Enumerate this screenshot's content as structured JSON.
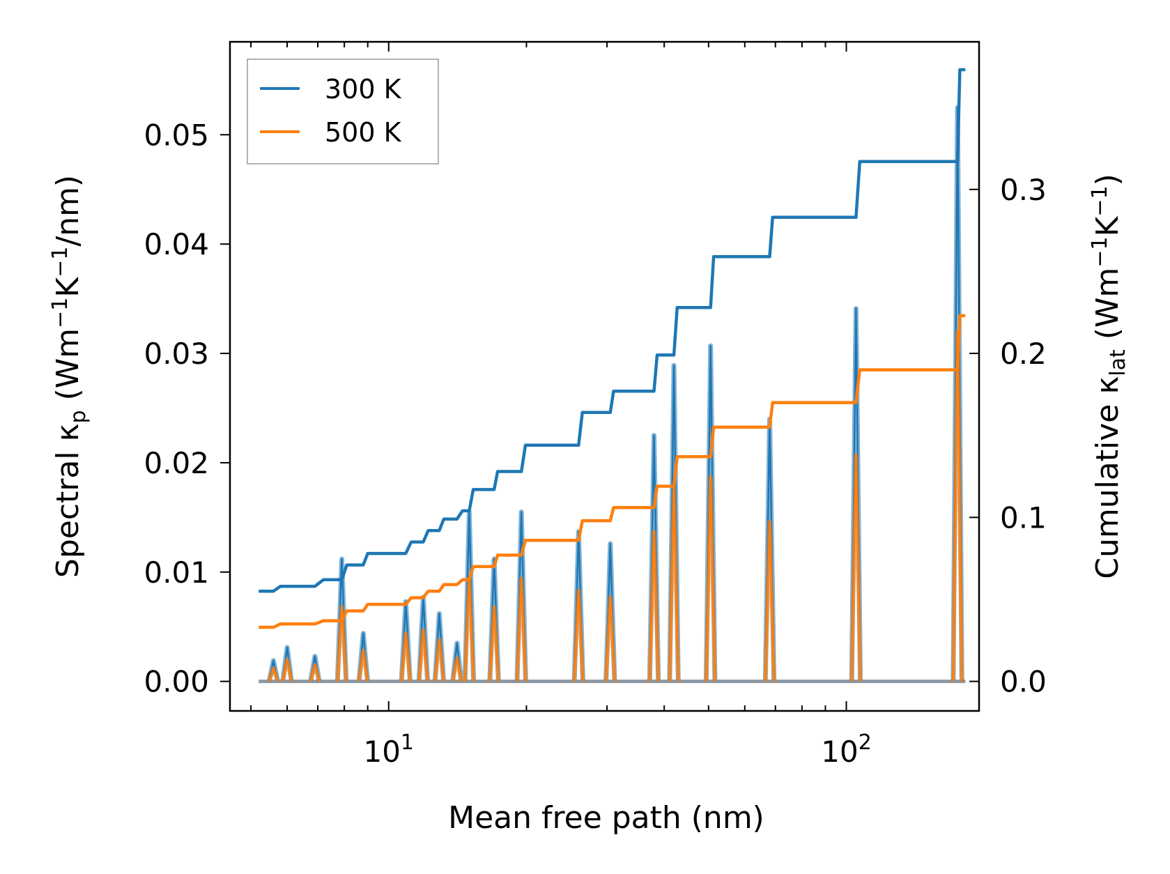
{
  "chart_data": {
    "type": "line",
    "xscale": "log",
    "xlabel": "Mean free path (nm)",
    "ylabel_left": {
      "base": "Spectral κ",
      "sub": "p",
      "units_open": " (Wm",
      "exp1": "−1",
      "mid": "K",
      "exp2": "−1",
      "units_close": "/nm)"
    },
    "ylabel_right": {
      "base": "Cumulative κ",
      "sub": "lat",
      "units_open": " (Wm",
      "exp1": "−1",
      "mid": "K",
      "exp2": "−1",
      "units_close": ")"
    },
    "xlim": [
      4.5,
      195
    ],
    "ylim_left": [
      -0.0027,
      0.0585
    ],
    "ylim_right": [
      -0.018,
      0.39
    ],
    "x_ticks": [
      {
        "value": 10,
        "base": "10",
        "exp": "1"
      },
      {
        "value": 100,
        "base": "10",
        "exp": "2"
      }
    ],
    "y_ticks_left": [
      "0.00",
      "0.01",
      "0.02",
      "0.03",
      "0.04",
      "0.05"
    ],
    "y_ticks_right": [
      "0.0",
      "0.1",
      "0.2",
      "0.3"
    ],
    "legend": {
      "position": "top-left",
      "entries": [
        {
          "label": "300 K",
          "color": "#1f77b4"
        },
        {
          "label": "500 K",
          "color": "#ff7f0e"
        }
      ]
    },
    "colors": {
      "300K": "#1f77b4",
      "500K": "#ff7f0e"
    },
    "peaks_x": [
      5.6,
      6.0,
      6.9,
      7.9,
      8.8,
      10.9,
      11.9,
      12.9,
      14.1,
      15.0,
      17.0,
      19.5,
      26.0,
      30.5,
      38.0,
      42.0,
      50.5,
      68.0,
      105.0,
      175.0
    ],
    "spectral_300K": [
      0.0019,
      0.0031,
      0.0023,
      0.0112,
      0.0044,
      0.0073,
      0.0077,
      0.0062,
      0.0035,
      0.0155,
      0.0112,
      0.0155,
      0.0137,
      0.0126,
      0.0225,
      0.0289,
      0.0307,
      0.024,
      0.0341,
      0.0525
    ],
    "spectral_500K": [
      0.0012,
      0.002,
      0.0015,
      0.0068,
      0.0028,
      0.0044,
      0.0047,
      0.0038,
      0.0021,
      0.0094,
      0.0068,
      0.0094,
      0.0083,
      0.0077,
      0.0137,
      0.0176,
      0.0187,
      0.0146,
      0.0207,
      0.032
    ],
    "cumulative_300K": {
      "x": [
        5.2,
        5.6,
        5.8,
        6.9,
        7.2,
        7.9,
        8.1,
        8.8,
        9.0,
        10.9,
        11.2,
        11.9,
        12.2,
        12.9,
        13.2,
        14.1,
        14.5,
        15.0,
        15.3,
        17.0,
        17.3,
        19.5,
        19.9,
        26.0,
        26.5,
        30.5,
        31.0,
        38.0,
        38.6,
        42.0,
        42.7,
        50.5,
        51.3,
        68.0,
        69.0,
        105.0,
        107.0,
        175.0,
        177.0,
        182.0
      ],
      "y": [
        0.055,
        0.055,
        0.058,
        0.058,
        0.062,
        0.062,
        0.071,
        0.071,
        0.078,
        0.078,
        0.085,
        0.085,
        0.092,
        0.092,
        0.099,
        0.099,
        0.104,
        0.104,
        0.117,
        0.117,
        0.128,
        0.128,
        0.144,
        0.144,
        0.164,
        0.164,
        0.177,
        0.177,
        0.199,
        0.199,
        0.228,
        0.228,
        0.259,
        0.259,
        0.283,
        0.283,
        0.317,
        0.317,
        0.373,
        0.373
      ]
    },
    "cumulative_500K": {
      "x": [
        5.2,
        5.6,
        5.8,
        6.9,
        7.2,
        7.9,
        8.1,
        8.8,
        9.0,
        10.9,
        11.2,
        11.9,
        12.2,
        12.9,
        13.2,
        14.1,
        14.5,
        15.0,
        15.3,
        17.0,
        17.3,
        19.5,
        19.9,
        26.0,
        26.5,
        30.5,
        31.0,
        38.0,
        38.6,
        42.0,
        42.7,
        50.5,
        51.3,
        68.0,
        69.0,
        105.0,
        107.0,
        175.0,
        177.0,
        182.0
      ],
      "y": [
        0.033,
        0.033,
        0.035,
        0.035,
        0.037,
        0.037,
        0.043,
        0.043,
        0.047,
        0.047,
        0.051,
        0.051,
        0.055,
        0.055,
        0.059,
        0.059,
        0.062,
        0.062,
        0.07,
        0.07,
        0.077,
        0.077,
        0.086,
        0.086,
        0.098,
        0.098,
        0.106,
        0.106,
        0.119,
        0.119,
        0.137,
        0.137,
        0.155,
        0.155,
        0.17,
        0.17,
        0.19,
        0.19,
        0.223,
        0.223
      ]
    }
  }
}
